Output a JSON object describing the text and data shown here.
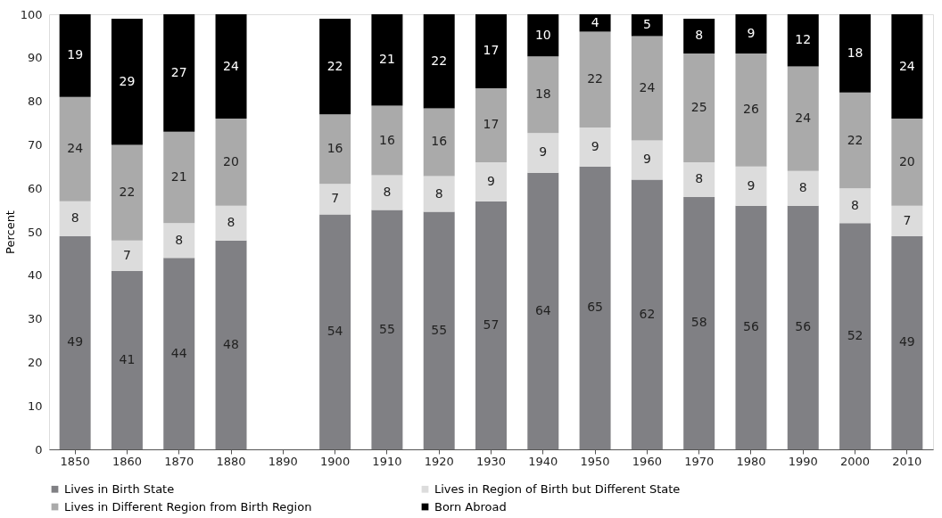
{
  "chart_data": {
    "type": "bar",
    "stacked": true,
    "ylabel": "Percent",
    "ylim": [
      0,
      100
    ],
    "yticks": [
      0,
      10,
      20,
      30,
      40,
      50,
      60,
      70,
      80,
      90,
      100
    ],
    "grid": false,
    "legend": "bottom",
    "categories": [
      "1850",
      "1860",
      "1870",
      "1880",
      "1890",
      "1900",
      "1910",
      "1920",
      "1930",
      "1940",
      "1950",
      "1960",
      "1970",
      "1980",
      "1990",
      "2000",
      "2010"
    ],
    "series": [
      {
        "name": "Lives in Birth State",
        "color": "#808084",
        "values": [
          49,
          41,
          44,
          48,
          null,
          54,
          55,
          54.6,
          57,
          63.6,
          65,
          62,
          58,
          56,
          56,
          52,
          49
        ],
        "value_labels": [
          "49",
          "41",
          "44",
          "48",
          null,
          "54",
          "55",
          "55",
          "57",
          "64",
          "65",
          "62",
          "58",
          "56",
          "56",
          "52",
          "49"
        ]
      },
      {
        "name": "Lives in Region of Birth but Different State",
        "color": "#dcdcdc",
        "values": [
          8,
          7,
          8,
          8,
          null,
          7,
          8,
          8.2,
          9,
          9.1,
          9,
          9,
          8,
          9,
          8,
          8,
          7
        ],
        "value_labels": [
          "8",
          "7",
          "8",
          "8",
          null,
          "7",
          "8",
          "8",
          "9",
          "9",
          "9",
          "9",
          "8",
          "9",
          "8",
          "8",
          "7"
        ]
      },
      {
        "name": "Lives in Different Region from Birth Region",
        "color": "#aaaaaa",
        "values": [
          24,
          22,
          21,
          20,
          null,
          16,
          16,
          15.6,
          17,
          17.6,
          22,
          24,
          25,
          26,
          24,
          22,
          20
        ],
        "value_labels": [
          "24",
          "22",
          "21",
          "20",
          null,
          "16",
          "16",
          "16",
          "17",
          "18",
          "22",
          "24",
          "25",
          "26",
          "24",
          "22",
          "20"
        ]
      },
      {
        "name": "Born Abroad",
        "color": "#000000",
        "values": [
          19,
          29,
          27,
          24,
          null,
          22,
          21,
          21.6,
          17,
          9.7,
          4,
          5,
          8,
          9,
          12,
          18,
          24
        ],
        "value_labels": [
          "19",
          "29",
          "27",
          "24",
          null,
          "22",
          "21",
          "22",
          "17",
          "10",
          "4",
          "5",
          "8",
          "9",
          "12",
          "18",
          "24"
        ]
      }
    ]
  }
}
